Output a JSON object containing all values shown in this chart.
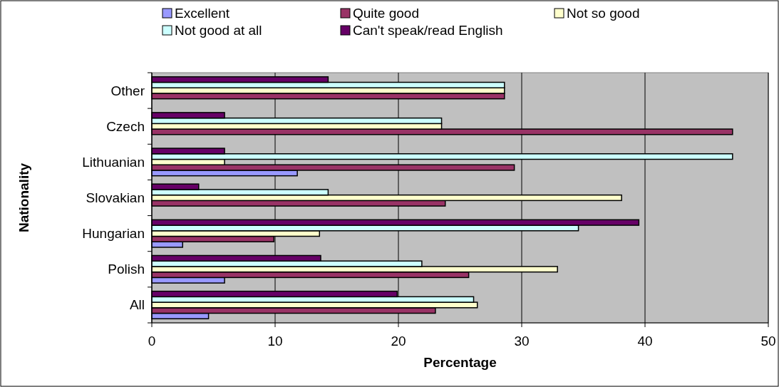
{
  "chart_data": {
    "type": "bar",
    "orientation": "horizontal",
    "xlabel": "Percentage",
    "ylabel": "Nationality",
    "categories": [
      "Other",
      "Czech",
      "Lithuanian",
      "Slovakian",
      "Hungarian",
      "Polish",
      "All"
    ],
    "series": [
      {
        "name": "Excellent",
        "color": "#9999ff",
        "values": [
          0,
          0,
          11.8,
          0,
          2.5,
          5.9,
          4.6
        ]
      },
      {
        "name": "Quite good",
        "color": "#993366",
        "values": [
          28.6,
          47.1,
          29.4,
          23.8,
          9.9,
          25.7,
          23.0
        ]
      },
      {
        "name": "Not so good",
        "color": "#ffffcc",
        "values": [
          28.6,
          23.5,
          5.9,
          38.1,
          13.6,
          32.9,
          26.4
        ]
      },
      {
        "name": "Not good at all",
        "color": "#ccffff",
        "values": [
          28.6,
          23.5,
          47.1,
          14.3,
          34.6,
          21.9,
          26.1
        ]
      },
      {
        "name": "Can't speak/read English",
        "color": "#660066",
        "values": [
          14.3,
          5.9,
          5.9,
          3.8,
          39.5,
          13.7,
          19.9
        ]
      }
    ],
    "xlim": [
      0,
      50
    ],
    "xticks": [
      0,
      10,
      20,
      30,
      40,
      50
    ],
    "grid": "x",
    "legend": "top"
  }
}
